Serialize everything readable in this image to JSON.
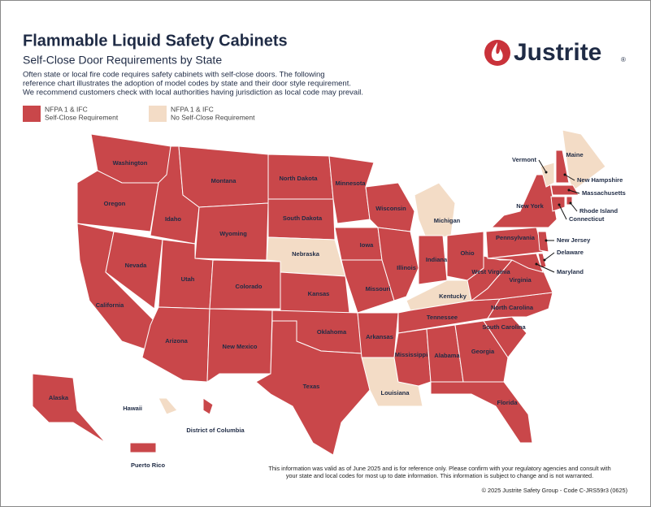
{
  "header": {
    "title": "Flammable Liquid Safety Cabinets",
    "subtitle": "Self-Close Door Requirements by State",
    "description": [
      "Often state or local fire code requires safety cabinets with self-close doors. The following",
      "reference chart illustrates the adoption of model codes by state and their door style requirement.",
      "We recommend customers check with local authorities having jurisdiction as local code may prevail."
    ]
  },
  "logo": {
    "text": "Justrite",
    "mark": "®"
  },
  "legend": [
    {
      "lines": [
        "NFPA 1 & IFC",
        "Self-Close Requirement"
      ],
      "color": "#c9474a"
    },
    {
      "lines": [
        "NFPA 1 & IFC",
        "No Self-Close Requirement"
      ],
      "color": "#f3dcc6"
    }
  ],
  "states": [
    {
      "name": "Washington",
      "group": 0
    },
    {
      "name": "Oregon",
      "group": 0
    },
    {
      "name": "California",
      "group": 0
    },
    {
      "name": "Nevada",
      "group": 0
    },
    {
      "name": "Idaho",
      "group": 0
    },
    {
      "name": "Montana",
      "group": 0
    },
    {
      "name": "Wyoming",
      "group": 0
    },
    {
      "name": "Utah",
      "group": 0
    },
    {
      "name": "Arizona",
      "group": 0
    },
    {
      "name": "Colorado",
      "group": 0
    },
    {
      "name": "New Mexico",
      "group": 0
    },
    {
      "name": "North Dakota",
      "group": 0
    },
    {
      "name": "South Dakota",
      "group": 0
    },
    {
      "name": "Nebraska",
      "group": 1
    },
    {
      "name": "Kansas",
      "group": 0
    },
    {
      "name": "Oklahoma",
      "group": 0
    },
    {
      "name": "Texas",
      "group": 0
    },
    {
      "name": "Minnesota",
      "group": 0
    },
    {
      "name": "Iowa",
      "group": 0
    },
    {
      "name": "Missouri",
      "group": 0
    },
    {
      "name": "Arkansas",
      "group": 0
    },
    {
      "name": "Louisiana",
      "group": 1
    },
    {
      "name": "Wisconsin",
      "group": 0
    },
    {
      "name": "Illinois",
      "group": 0
    },
    {
      "name": "Michigan",
      "group": 1
    },
    {
      "name": "Indiana",
      "group": 0
    },
    {
      "name": "Ohio",
      "group": 0
    },
    {
      "name": "Kentucky",
      "group": 1
    },
    {
      "name": "Tennessee",
      "group": 0
    },
    {
      "name": "Mississippi",
      "group": 0
    },
    {
      "name": "Alabama",
      "group": 0
    },
    {
      "name": "Georgia",
      "group": 0
    },
    {
      "name": "Florida",
      "group": 0
    },
    {
      "name": "South Carolina",
      "group": 0
    },
    {
      "name": "North Carolina",
      "group": 0
    },
    {
      "name": "Virginia",
      "group": 0
    },
    {
      "name": "West Virginia",
      "group": 0
    },
    {
      "name": "Pennsylvania",
      "group": 0
    },
    {
      "name": "Maryland",
      "group": 0
    },
    {
      "name": "Delaware",
      "group": 0
    },
    {
      "name": "New Jersey",
      "group": 0
    },
    {
      "name": "New York",
      "group": 0
    },
    {
      "name": "Vermont",
      "group": 1
    },
    {
      "name": "New Hampshire",
      "group": 0
    },
    {
      "name": "Maine",
      "group": 1
    },
    {
      "name": "Massachusetts",
      "group": 0
    },
    {
      "name": "Connecticut",
      "group": 0
    },
    {
      "name": "Rhode Island",
      "group": 0
    },
    {
      "name": "Alaska",
      "group": 0
    },
    {
      "name": "Hawaii",
      "group": 1
    },
    {
      "name": "District of Columbia",
      "group": 0
    },
    {
      "name": "Puerto Rico",
      "group": 0
    }
  ],
  "footer": {
    "notes": [
      "This information was valid as of June 2025 and is for reference only.  Please confirm with your regulatory agencies and consult with",
      "your state and local codes for most up to date information. This information is subject to change and is not warranted."
    ],
    "copyright": "© 2025 Justrite Safety Group - Code C-JRS59r3 (0625)"
  }
}
